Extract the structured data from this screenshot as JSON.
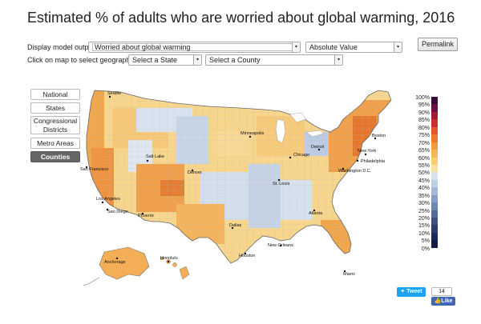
{
  "title": "Estimated % of adults who are worried about global warming, 2016",
  "controls": {
    "display_label": "Display model output:",
    "output_value": "Worried about global warming",
    "measure_value": "Absolute Value",
    "permalink_label": "Permalink",
    "click_label": "Click on map to select geography, or:",
    "state_placeholder": "Select a State",
    "county_placeholder": "Select a County"
  },
  "geography_buttons": [
    {
      "label": "National",
      "active": false
    },
    {
      "label": "States",
      "active": false
    },
    {
      "label": "Congressional Districts",
      "active": false
    },
    {
      "label": "Metro Areas",
      "active": false
    },
    {
      "label": "Counties",
      "active": true
    }
  ],
  "map": {
    "cities": [
      "Seattle",
      "Minneapolis",
      "Boston",
      "Detroit",
      "New York",
      "Chicago",
      "Philadelphia",
      "Salt Lake",
      "San Francisco",
      "Denver",
      "Washington D.C.",
      "St. Louis",
      "Los Angeles",
      "Atlanta",
      "San Diego",
      "Phoenix",
      "Dallas",
      "New Orleans",
      "Houston",
      "Miami",
      "Anchorage",
      "Honolulu"
    ]
  },
  "legend": {
    "labels": [
      "100%",
      "95%",
      "90%",
      "85%",
      "80%",
      "75%",
      "70%",
      "65%",
      "60%",
      "55%",
      "50%",
      "45%",
      "40%",
      "35%",
      "30%",
      "25%",
      "20%",
      "15%",
      "10%",
      "5%",
      "0%"
    ],
    "colors": [
      "#3a0a3f",
      "#6b0f3f",
      "#9e1d2e",
      "#c9302c",
      "#e0572a",
      "#ea7b2e",
      "#f29a3f",
      "#f6b655",
      "#f9cf72",
      "#fbe29a",
      "#d9e3ef",
      "#bfcfe4",
      "#a3b8d6",
      "#879fc6",
      "#6d86b4",
      "#55699c",
      "#3f5085",
      "#2c3c6e",
      "#1d2b58",
      "#111d44"
    ]
  },
  "social": {
    "tweet_label": "Tweet",
    "like_count": "14",
    "like_label": "Like"
  }
}
